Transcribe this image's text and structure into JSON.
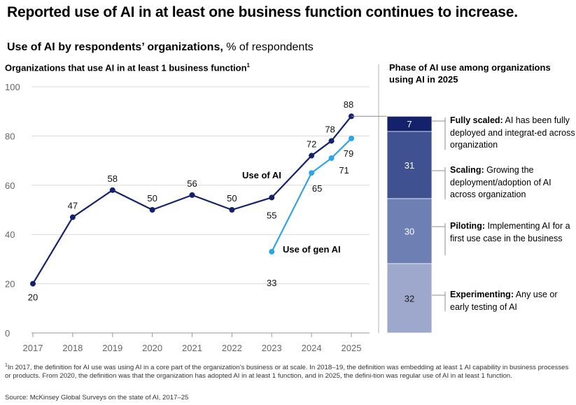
{
  "title": "Reported use of AI in at least one business function continues to increase.",
  "subtitle_bold": "Use of AI by respondents’ organizations,",
  "subtitle_rest": " % of respondents",
  "left_title": "Organizations that use AI in at least 1 business function",
  "left_title_note": "1",
  "right_title": "Phase of AI use among organizations using AI in 2025",
  "colors": {
    "use_of_ai": "#13226b",
    "use_of_gen_ai": "#2fa4e4",
    "grid": "#d9d9d9",
    "fully_scaled": "#13226b",
    "scaling": "#3f5191",
    "piloting": "#6d7fb3",
    "experimenting": "#9ea8cd"
  },
  "chart_data": [
    {
      "type": "line",
      "title": "Organizations that use AI in at least 1 business function",
      "y_ticks": [
        0,
        20,
        40,
        60,
        80,
        100
      ],
      "x_ticks": [
        "2017",
        "2018",
        "2019",
        "2020",
        "2021",
        "2022",
        "2023",
        "2024",
        "2025"
      ],
      "ylim": [
        0,
        100
      ],
      "grid": true,
      "series": [
        {
          "name": "Use of AI",
          "x": [
            2017,
            2018,
            2019,
            2020,
            2021,
            2022,
            2023,
            2024,
            2024.5,
            2025
          ],
          "values": [
            20,
            47,
            58,
            50,
            56,
            50,
            55,
            72,
            78,
            88
          ]
        },
        {
          "name": "Use of gen AI",
          "x": [
            2023,
            2024,
            2024.5,
            2025
          ],
          "values": [
            33,
            65,
            71,
            79
          ]
        }
      ]
    },
    {
      "type": "bar",
      "title": "Phase of AI use among organizations using AI in 2025",
      "stacked": true,
      "categories": [
        "Fully scaled",
        "Scaling",
        "Piloting",
        "Experimenting"
      ],
      "values": [
        7,
        31,
        30,
        32
      ]
    }
  ],
  "phases": [
    {
      "name": "Fully scaled:",
      "desc": " AI has been fully deployed and integrat-ed across organization"
    },
    {
      "name": "Scaling:",
      "desc": " Growing the deployment/adoption of AI across organization"
    },
    {
      "name": "Piloting:",
      "desc": " Implementing AI for a first use case in the business"
    },
    {
      "name": "Experimenting:",
      "desc": " Any use or early testing of AI"
    }
  ],
  "footnote_mark": "1",
  "footnote": "In 2017, the definition for AI use was using AI in a core part of the organization’s business or at scale. In 2018–19, the definition was embedding at least 1 AI capability in business processes or products. From 2020, the definition was that the organization has adopted AI in at least 1 function, and in 2025, the defini-tion was regular use of AI in at least 1 function.",
  "source": "Source: McKinsey Global Surveys on the state of AI, 2017–25"
}
